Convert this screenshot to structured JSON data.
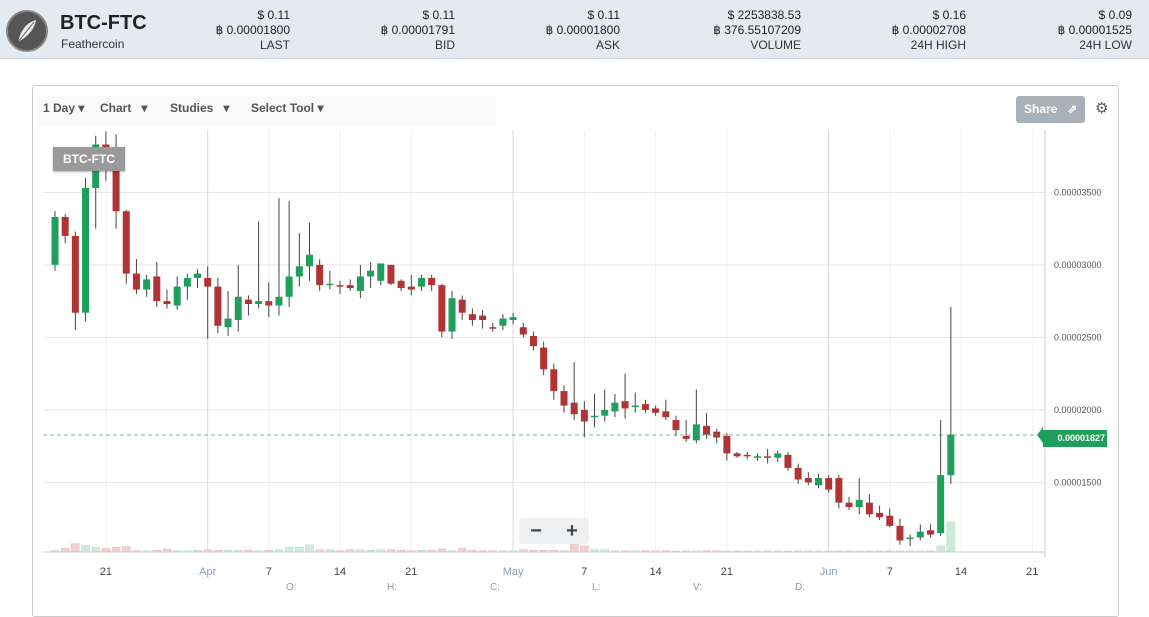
{
  "header": {
    "pair": "BTC-FTC",
    "coin_name": "Feathercoin",
    "stats": [
      {
        "usd": "$ 0.11",
        "btc": "฿ 0.00001800",
        "label": "LAST"
      },
      {
        "usd": "$ 0.11",
        "btc": "฿ 0.00001791",
        "label": "BID"
      },
      {
        "usd": "$ 0.11",
        "btc": "฿ 0.00001800",
        "label": "ASK"
      },
      {
        "usd": "$ 2253838.53",
        "btc": "฿ 376.55107209",
        "label": "VOLUME"
      },
      {
        "usd": "$ 0.16",
        "btc": "฿ 0.00002708",
        "label": "24H HIGH"
      },
      {
        "usd": "$ 0.09",
        "btc": "฿ 0.00001525",
        "label": "24H LOW"
      }
    ]
  },
  "toolbar": {
    "interval": "1 Day",
    "chart": "Chart",
    "studies": "Studies",
    "select_tool": "Select Tool",
    "share": "Share"
  },
  "chart": {
    "symbol": "BTC-FTC",
    "current_price_label": "0.00001827",
    "zoom_out": "−",
    "zoom_in": "+",
    "ohlc_labels": [
      "O:",
      "H:",
      "C:",
      "L:",
      "V:",
      "D:"
    ],
    "colors": {
      "up": "#1f9f5b",
      "down": "#b23333",
      "grid": "#e6e6e6"
    }
  },
  "chart_data": {
    "type": "candlestick",
    "y_ticks": [
      "0.00003500",
      "0.00003000",
      "0.00002500",
      "0.00002000",
      "0.00001500"
    ],
    "x_ticks": [
      "21",
      "Apr",
      "7",
      "14",
      "21",
      "May",
      "7",
      "14",
      "21",
      "Jun",
      "7",
      "14",
      "21"
    ],
    "ylim": [
      1.02e-05,
      3.93e-05
    ],
    "current_price": 1.827e-05,
    "candles": [
      [
        3e-05,
        3.37e-05,
        2.96e-05,
        3.33e-05
      ],
      [
        3.33e-05,
        3.35e-05,
        3.15e-05,
        3.2e-05
      ],
      [
        3.2e-05,
        3.23e-05,
        2.55e-05,
        2.67e-05
      ],
      [
        2.67e-05,
        3.6e-05,
        2.61e-05,
        3.53e-05
      ],
      [
        3.53e-05,
        3.89e-05,
        3.25e-05,
        3.83e-05
      ],
      [
        3.83e-05,
        3.92e-05,
        3.58e-05,
        3.77e-05
      ],
      [
        3.77e-05,
        3.9e-05,
        3.25e-05,
        3.37e-05
      ],
      [
        3.37e-05,
        3.38e-05,
        2.87e-05,
        2.94e-05
      ],
      [
        2.94e-05,
        3.04e-05,
        2.8e-05,
        2.83e-05
      ],
      [
        2.83e-05,
        2.93e-05,
        2.78e-05,
        2.9e-05
      ],
      [
        2.92e-05,
        3.02e-05,
        2.71e-05,
        2.75e-05
      ],
      [
        2.75e-05,
        2.83e-05,
        2.7e-05,
        2.73e-05
      ],
      [
        2.72e-05,
        2.92e-05,
        2.69e-05,
        2.85e-05
      ],
      [
        2.85e-05,
        2.94e-05,
        2.76e-05,
        2.91e-05
      ],
      [
        2.91e-05,
        2.97e-05,
        2.84e-05,
        2.94e-05
      ],
      [
        2.91e-05,
        2.99e-05,
        2.49e-05,
        2.85e-05
      ],
      [
        2.85e-05,
        2.91e-05,
        2.53e-05,
        2.58e-05
      ],
      [
        2.57e-05,
        2.82e-05,
        2.51e-05,
        2.63e-05
      ],
      [
        2.62e-05,
        3e-05,
        2.54e-05,
        2.78e-05
      ],
      [
        2.76e-05,
        2.79e-05,
        2.65e-05,
        2.73e-05
      ],
      [
        2.73e-05,
        3.3e-05,
        2.7e-05,
        2.75e-05
      ],
      [
        2.75e-05,
        2.88e-05,
        2.64e-05,
        2.72e-05
      ],
      [
        2.72e-05,
        3.46e-05,
        2.65e-05,
        2.78e-05
      ],
      [
        2.78e-05,
        3.44e-05,
        2.71e-05,
        2.92e-05
      ],
      [
        2.92e-05,
        3.22e-05,
        2.85e-05,
        2.99e-05
      ],
      [
        2.99e-05,
        3.29e-05,
        2.89e-05,
        3.07e-05
      ],
      [
        3e-05,
        3.04e-05,
        2.82e-05,
        2.86e-05
      ],
      [
        2.86e-05,
        2.96e-05,
        2.83e-05,
        2.87e-05
      ],
      [
        2.86e-05,
        2.89e-05,
        2.8e-05,
        2.85e-05
      ],
      [
        2.86e-05,
        2.9e-05,
        2.82e-05,
        2.84e-05
      ],
      [
        2.82e-05,
        3e-05,
        2.77e-05,
        2.92e-05
      ],
      [
        2.92e-05,
        3.02e-05,
        2.84e-05,
        2.96e-05
      ],
      [
        2.89e-05,
        3e-05,
        2.86e-05,
        3.01e-05
      ],
      [
        3e-05,
        2.99e-05,
        2.86e-05,
        2.87e-05
      ],
      [
        2.89e-05,
        2.9e-05,
        2.82e-05,
        2.84e-05
      ],
      [
        2.85e-05,
        2.93e-05,
        2.79e-05,
        2.83e-05
      ],
      [
        2.85e-05,
        2.93e-05,
        2.82e-05,
        2.91e-05
      ],
      [
        2.91e-05,
        2.93e-05,
        2.82e-05,
        2.86e-05
      ],
      [
        2.86e-05,
        2.87e-05,
        2.5e-05,
        2.54e-05
      ],
      [
        2.54e-05,
        2.82e-05,
        2.49e-05,
        2.77e-05
      ],
      [
        2.76e-05,
        2.79e-05,
        2.62e-05,
        2.67e-05
      ],
      [
        2.66e-05,
        2.7e-05,
        2.58e-05,
        2.62e-05
      ],
      [
        2.65e-05,
        2.69e-05,
        2.56e-05,
        2.62e-05
      ],
      [
        2.57e-05,
        2.6e-05,
        2.54e-05,
        2.56e-05
      ],
      [
        2.58e-05,
        2.66e-05,
        2.55e-05,
        2.63e-05
      ],
      [
        2.62e-05,
        2.67e-05,
        2.59e-05,
        2.64e-05
      ],
      [
        2.57e-05,
        2.6e-05,
        2.5e-05,
        2.52e-05
      ],
      [
        2.51e-05,
        2.54e-05,
        2.41e-05,
        2.44e-05
      ],
      [
        2.43e-05,
        2.47e-05,
        2.24e-05,
        2.28e-05
      ],
      [
        2.28e-05,
        2.32e-05,
        2.07e-05,
        2.13e-05
      ],
      [
        2.13e-05,
        2.17e-05,
        1.98e-05,
        2.03e-05
      ],
      [
        2.05e-05,
        2.33e-05,
        1.93e-05,
        1.97e-05
      ],
      [
        2e-05,
        2.06e-05,
        1.81e-05,
        1.92e-05
      ],
      [
        1.95e-05,
        2.11e-05,
        1.88e-05,
        1.96e-05
      ],
      [
        1.96e-05,
        2.14e-05,
        1.92e-05,
        2e-05
      ],
      [
        1.99e-05,
        2.11e-05,
        1.95e-05,
        2.05e-05
      ],
      [
        2.06e-05,
        2.25e-05,
        1.94e-05,
        2.01e-05
      ],
      [
        2.02e-05,
        2.12e-05,
        1.98e-05,
        2.03e-05
      ],
      [
        2.04e-05,
        2.07e-05,
        1.98e-05,
        2e-05
      ],
      [
        2.01e-05,
        2.03e-05,
        1.96e-05,
        1.98e-05
      ],
      [
        1.99e-05,
        2.07e-05,
        1.93e-05,
        1.95e-05
      ],
      [
        1.93e-05,
        1.96e-05,
        1.82e-05,
        1.86e-05
      ],
      [
        1.82e-05,
        1.93e-05,
        1.78e-05,
        1.8e-05
      ],
      [
        1.79e-05,
        2.14e-05,
        1.77e-05,
        1.9e-05
      ],
      [
        1.89e-05,
        1.98e-05,
        1.8e-05,
        1.83e-05
      ],
      [
        1.85e-05,
        1.87e-05,
        1.77e-05,
        1.81e-05
      ],
      [
        1.82e-05,
        1.84e-05,
        1.65e-05,
        1.7e-05
      ],
      [
        1.7e-05,
        1.71e-05,
        1.67e-05,
        1.68e-05
      ],
      [
        1.69e-05,
        1.71e-05,
        1.66e-05,
        1.68e-05
      ],
      [
        1.67e-05,
        1.7e-05,
        1.65e-05,
        1.68e-05
      ],
      [
        1.68e-05,
        1.73e-05,
        1.63e-05,
        1.67e-05
      ],
      [
        1.67e-05,
        1.72e-05,
        1.64e-05,
        1.7e-05
      ],
      [
        1.69e-05,
        1.71e-05,
        1.58e-05,
        1.6e-05
      ],
      [
        1.6e-05,
        1.63e-05,
        1.49e-05,
        1.52e-05
      ],
      [
        1.53e-05,
        1.57e-05,
        1.48e-05,
        1.5e-05
      ],
      [
        1.48e-05,
        1.56e-05,
        1.46e-05,
        1.53e-05
      ],
      [
        1.53e-05,
        1.55e-05,
        1.43e-05,
        1.45e-05
      ],
      [
        1.53e-05,
        1.55e-05,
        1.32e-05,
        1.36e-05
      ],
      [
        1.36e-05,
        1.4e-05,
        1.31e-05,
        1.33e-05
      ],
      [
        1.33e-05,
        1.53e-05,
        1.28e-05,
        1.38e-05
      ],
      [
        1.36e-05,
        1.42e-05,
        1.26e-05,
        1.28e-05
      ],
      [
        1.29e-05,
        1.34e-05,
        1.24e-05,
        1.26e-05
      ],
      [
        1.27e-05,
        1.32e-05,
        1.19e-05,
        1.2e-05
      ],
      [
        1.2e-05,
        1.25e-05,
        1.07e-05,
        1.1e-05
      ],
      [
        1.11e-05,
        1.14e-05,
        1.06e-05,
        1.12e-05
      ],
      [
        1.12e-05,
        1.21e-05,
        1.1e-05,
        1.16e-05
      ],
      [
        1.17e-05,
        1.21e-05,
        1.12e-05,
        1.14e-05
      ],
      [
        1.15e-05,
        1.93e-05,
        1.13e-05,
        1.55e-05
      ],
      [
        1.55e-05,
        2.71e-05,
        1.49e-05,
        1.83e-05
      ]
    ],
    "volumes": [
      3,
      6,
      14,
      11,
      8,
      6,
      8,
      9,
      2,
      2,
      3,
      5,
      2,
      2,
      3,
      4,
      3,
      3,
      3,
      3,
      2,
      3,
      4,
      8,
      8,
      12,
      4,
      4,
      2,
      4,
      4,
      3,
      4,
      4,
      3,
      2,
      3,
      3,
      5,
      2,
      6,
      3,
      2,
      2,
      2,
      2,
      4,
      3,
      3,
      3,
      2,
      14,
      10,
      4,
      4,
      2,
      2,
      2,
      2,
      2,
      2,
      1,
      1,
      2,
      2,
      2,
      1,
      1,
      1,
      1,
      1,
      1,
      1,
      1,
      1,
      1,
      1,
      1,
      1,
      1,
      1,
      1,
      1,
      1,
      1,
      1,
      1,
      10,
      50
    ]
  }
}
